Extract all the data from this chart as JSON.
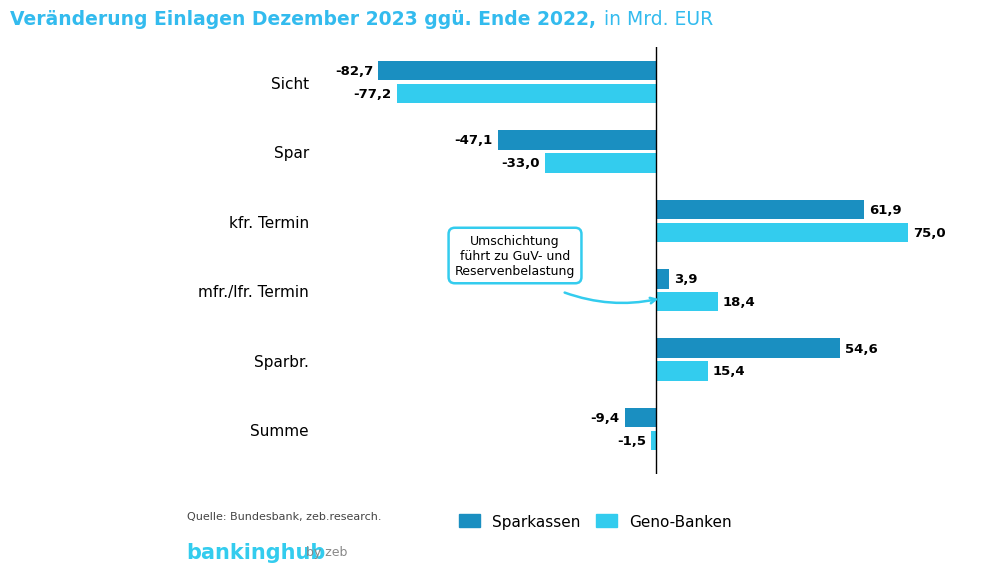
{
  "title_bold": "Veränderung Einlagen Dezember 2023 ggü. Ende 2022,",
  "title_normal": " in Mrd. EUR",
  "categories": [
    "Sicht",
    "Spar",
    "kfr. Termin",
    "mfr./lfr. Termin",
    "Sparbr.",
    "Summe"
  ],
  "sparkassen": [
    -82.7,
    -47.1,
    61.9,
    3.9,
    54.6,
    -9.4
  ],
  "geno_banken": [
    -77.2,
    -33.0,
    75.0,
    18.4,
    15.4,
    -1.5
  ],
  "color_sparkassen": "#1a8fc1",
  "color_geno": "#33ccee",
  "annotation_text": "Umschichtung\nführt zu GuV- und\nReservenbelastung",
  "source_text": "Quelle: Bundesbank, zeb.research.",
  "legend_sparkassen": "Sparkassen",
  "legend_geno": "Geno-Banken",
  "background_color": "#ffffff",
  "xlim": [
    -100,
    95
  ]
}
